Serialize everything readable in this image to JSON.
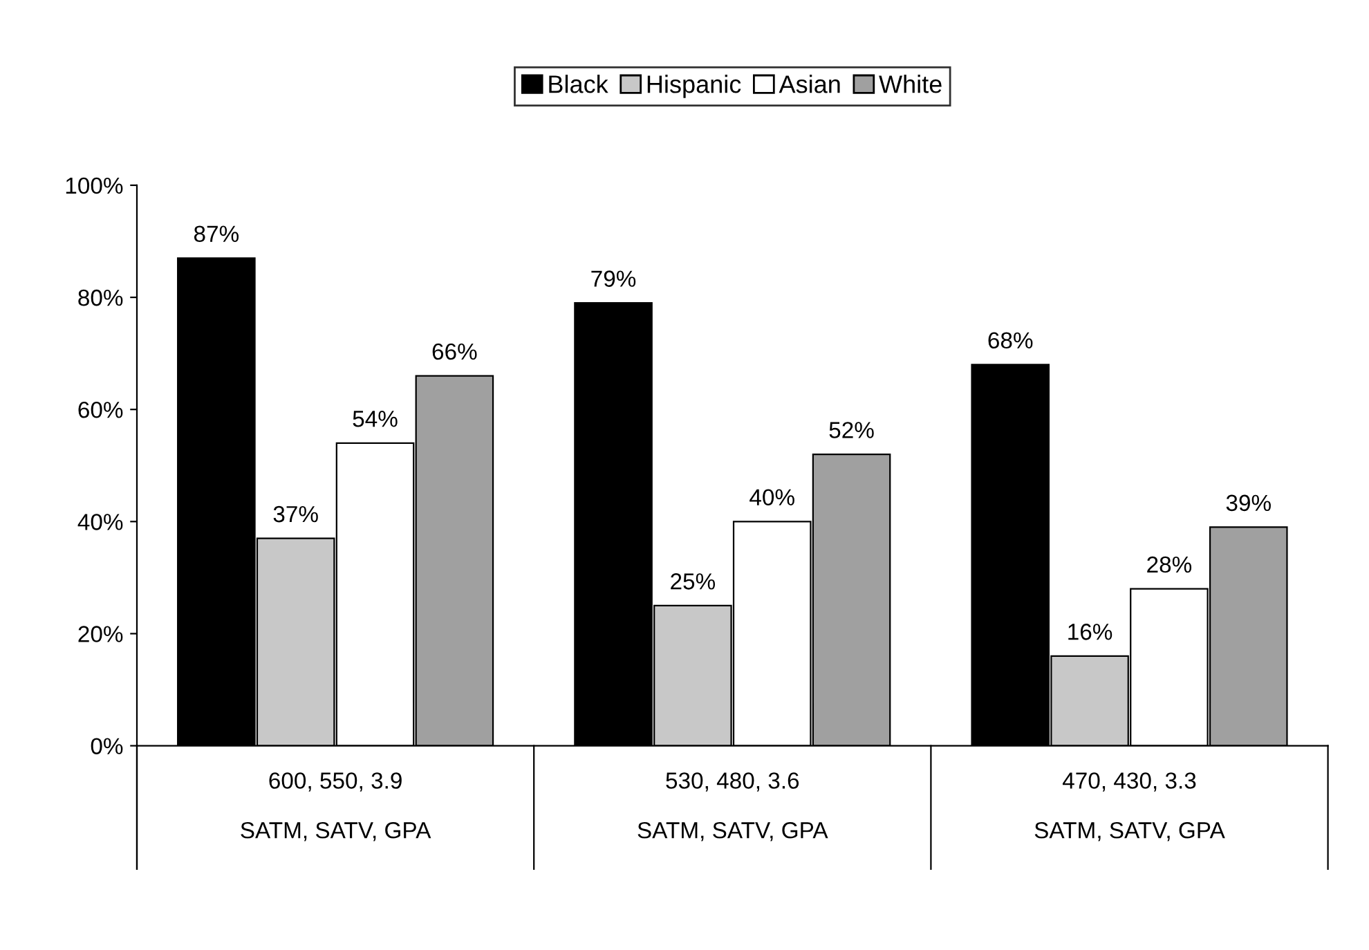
{
  "chart_data": {
    "type": "bar",
    "categories": [
      "600, 550, 3.9\n\nSATM, SATV, GPA",
      "530, 480, 3.6\n\nSATM, SATV, GPA",
      "470, 430, 3.3\n\nSATM, SATV, GPA"
    ],
    "series": [
      {
        "name": "Black",
        "color": "#000000",
        "values": [
          87,
          79,
          68
        ],
        "value_labels": [
          "87%",
          "79%",
          "68%"
        ]
      },
      {
        "name": "Hispanic",
        "color": "#c8c8c8",
        "values": [
          37,
          25,
          16
        ],
        "value_labels": [
          "37%",
          "25%",
          "16%"
        ]
      },
      {
        "name": "Asian",
        "color": "#ffffff",
        "values": [
          54,
          40,
          28
        ],
        "value_labels": [
          "54%",
          "40%",
          "28%"
        ]
      },
      {
        "name": "White",
        "color": "#a0a0a0",
        "values": [
          66,
          52,
          39
        ],
        "value_labels": [
          "66%",
          "52%",
          "39%"
        ]
      }
    ],
    "ylim": [
      0,
      100
    ],
    "yticks": [
      {
        "value": 0,
        "label": "0%"
      },
      {
        "value": 20,
        "label": "20%"
      },
      {
        "value": 40,
        "label": "40%"
      },
      {
        "value": 60,
        "label": "60%"
      },
      {
        "value": 80,
        "label": "80%"
      },
      {
        "value": 100,
        "label": "100%"
      }
    ],
    "grid": false,
    "legend": "top"
  }
}
